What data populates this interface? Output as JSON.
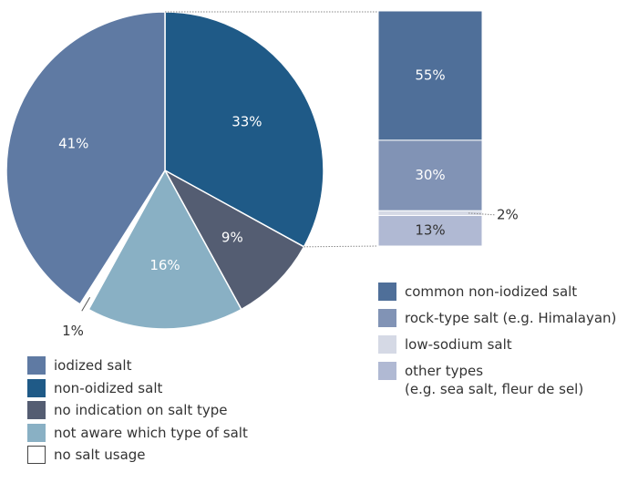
{
  "chart_data": [
    {
      "type": "pie",
      "categories": [
        "iodized salt",
        "non-oidized salt",
        "no indication on salt type",
        "not aware which type of salt",
        "no salt usage"
      ],
      "values": [
        41,
        33,
        9,
        16,
        1
      ],
      "value_labels": [
        "41%",
        "33%",
        "9%",
        "16%",
        "1%"
      ],
      "colors": [
        "#5f7aa3",
        "#1f5a87",
        "#545d72",
        "#89b0c4",
        "#ffffff"
      ],
      "drawing_order": [
        1,
        2,
        3,
        4,
        0
      ]
    },
    {
      "type": "bar",
      "series": [
        {
          "name": "common non-iodized salt",
          "color": "#4f6f99",
          "values": [
            55
          ],
          "value_labels": [
            "55%"
          ]
        },
        {
          "name": "rock-type salt (e.g. Himalayan)",
          "color": "#8193b5",
          "values": [
            30
          ],
          "value_labels": [
            "30%"
          ]
        },
        {
          "name": "low-sodium salt",
          "color": "#d5d9e5",
          "values": [
            2
          ],
          "value_labels": [
            "2%"
          ]
        },
        {
          "name": "other types\n(e.g. sea salt, fleur de sel)",
          "color": "#b0b9d3",
          "values": [
            13
          ],
          "value_labels": [
            "13%"
          ]
        }
      ]
    }
  ]
}
